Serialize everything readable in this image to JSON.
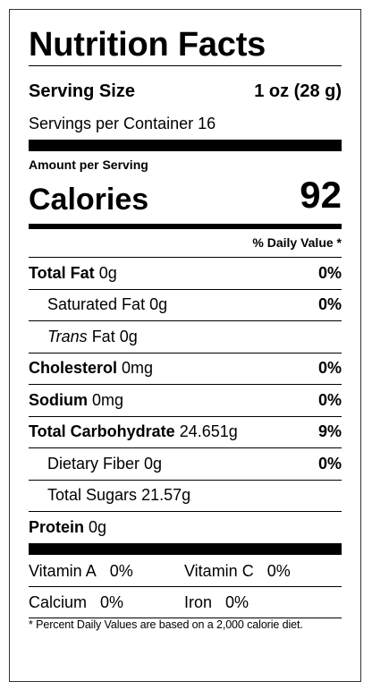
{
  "title": "Nutrition Facts",
  "serving_size": {
    "label": "Serving Size",
    "value": "1 oz (28 g)"
  },
  "servings_per_container": {
    "label": "Servings per Container",
    "value": "16"
  },
  "amount_per_serving": "Amount per Serving",
  "calories": {
    "label": "Calories",
    "value": "92"
  },
  "daily_value_header": "% Daily Value *",
  "nutrients": [
    {
      "label": "Total Fat",
      "amount": "0g",
      "dv": "0%"
    },
    {
      "label": "Saturated Fat",
      "amount": "0g",
      "dv": "0%"
    },
    {
      "label_italic": "Trans",
      "label": " Fat",
      "amount": "0g",
      "dv": ""
    },
    {
      "label": "Cholesterol",
      "amount": "0mg",
      "dv": "0%"
    },
    {
      "label": "Sodium",
      "amount": "0mg",
      "dv": "0%"
    },
    {
      "label": "Total Carbohydrate",
      "amount": "24.651g",
      "dv": "9%"
    },
    {
      "label": "Dietary Fiber",
      "amount": "0g",
      "dv": "0%"
    },
    {
      "label": "Total Sugars",
      "amount": "21.57g",
      "dv": ""
    },
    {
      "label": "Protein",
      "amount": "0g",
      "dv": ""
    }
  ],
  "vitamins": [
    {
      "label": "Vitamin A",
      "value": "0%"
    },
    {
      "label": "Vitamin C",
      "value": "0%"
    },
    {
      "label": "Calcium",
      "value": "0%"
    },
    {
      "label": "Iron",
      "value": "0%"
    }
  ],
  "footnote": "* Percent Daily Values are based on a 2,000 calorie diet."
}
